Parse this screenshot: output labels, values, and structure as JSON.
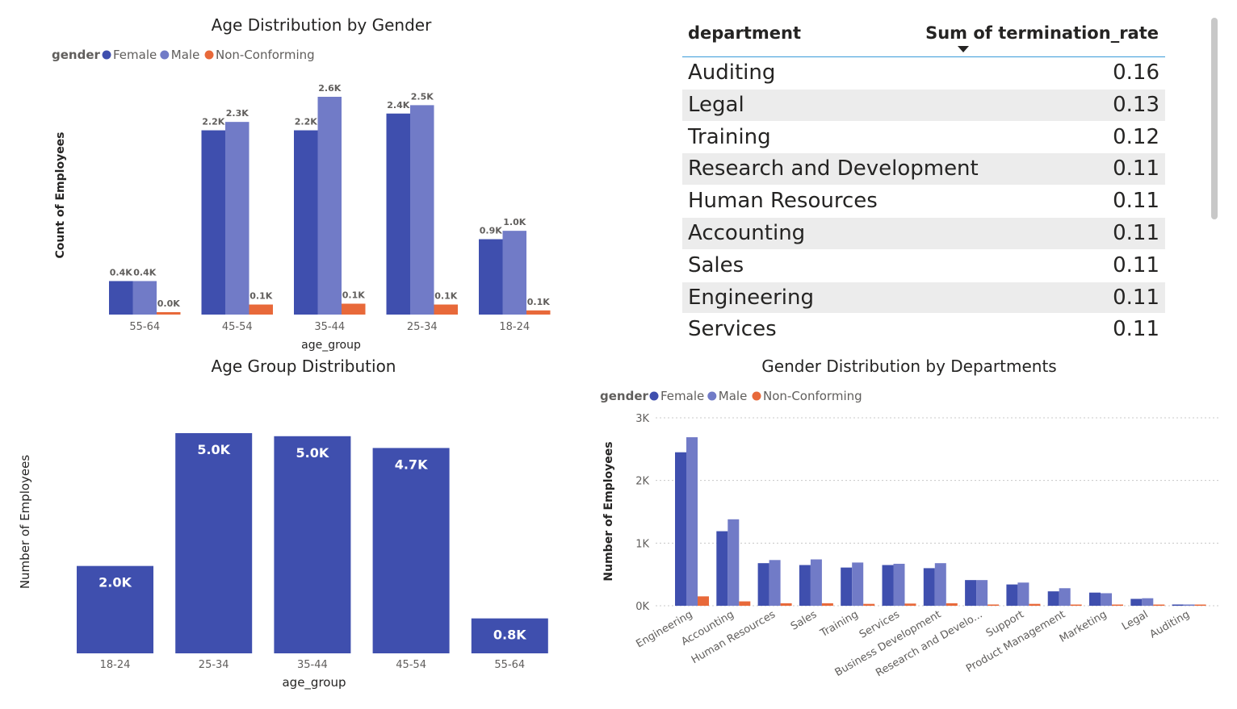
{
  "colors": {
    "female": "#3f4fae",
    "male": "#717bc7",
    "nonconforming": "#e8693a",
    "single": "#3f4fae",
    "grid": "#c8c8c8",
    "header_line": "#3a9bd9"
  },
  "chart1": {
    "title": "Age Distribution by Gender",
    "legend_title": "gender",
    "xlabel": "age_group",
    "ylabel": "Count of Employees"
  },
  "table": {
    "col1": "department",
    "col2": "Sum of termination_rate",
    "rows": [
      {
        "department": "Auditing",
        "rate": "0.16"
      },
      {
        "department": "Legal",
        "rate": "0.13"
      },
      {
        "department": "Training",
        "rate": "0.12"
      },
      {
        "department": "Research and Development",
        "rate": "0.11"
      },
      {
        "department": "Human Resources",
        "rate": "0.11"
      },
      {
        "department": "Accounting",
        "rate": "0.11"
      },
      {
        "department": "Sales",
        "rate": "0.11"
      },
      {
        "department": "Engineering",
        "rate": "0.11"
      },
      {
        "department": "Services",
        "rate": "0.11"
      }
    ]
  },
  "chart2": {
    "title": "Age Group Distribution",
    "xlabel": "age_group",
    "ylabel": "Number of Employees"
  },
  "chart3": {
    "title": "Gender Distribution by Departments",
    "legend_title": "gender",
    "ylabel": "Number of Employees"
  },
  "chart_data": [
    {
      "type": "bar",
      "title": "Age Distribution by Gender",
      "xlabel": "age_group",
      "ylabel": "Count of Employees",
      "legend_position": "top-left",
      "categories": [
        "55-64",
        "45-54",
        "35-44",
        "25-34",
        "18-24"
      ],
      "series": [
        {
          "name": "Female",
          "values": [
            0.4,
            2.2,
            2.2,
            2.4,
            0.9
          ],
          "labels": [
            "0.4K",
            "2.2K",
            "2.2K",
            "2.4K",
            "0.9K"
          ]
        },
        {
          "name": "Male",
          "values": [
            0.4,
            2.3,
            2.6,
            2.5,
            1.0
          ],
          "labels": [
            "0.4K",
            "2.3K",
            "2.6K",
            "2.5K",
            "1.0K"
          ]
        },
        {
          "name": "Non-Conforming",
          "values": [
            0.02,
            0.12,
            0.13,
            0.12,
            0.05
          ],
          "labels": [
            "0.0K",
            "0.1K",
            "0.1K",
            "0.1K",
            "0.1K"
          ]
        }
      ],
      "ylim": [
        0,
        2.8
      ],
      "unit": "K"
    },
    {
      "type": "bar",
      "title": "Age Group Distribution",
      "xlabel": "age_group",
      "ylabel": "Number of Employees",
      "categories": [
        "18-24",
        "25-34",
        "35-44",
        "45-54",
        "55-64"
      ],
      "values": [
        2.0,
        5.04,
        4.97,
        4.7,
        0.8
      ],
      "labels": [
        "2.0K",
        "5.0K",
        "5.0K",
        "4.7K",
        "0.8K"
      ],
      "ylim": [
        0,
        5.1
      ],
      "unit": "K"
    },
    {
      "type": "bar",
      "title": "Gender Distribution by Departments",
      "ylabel": "Number of Employees",
      "legend_position": "top-left",
      "categories": [
        "Engineering",
        "Accounting",
        "Human Resources",
        "Sales",
        "Training",
        "Services",
        "Business Development",
        "Research and Develo...",
        "Support",
        "Product Management",
        "Marketing",
        "Legal",
        "Auditing"
      ],
      "series": [
        {
          "name": "Female",
          "values": [
            2450,
            1190,
            680,
            650,
            610,
            650,
            600,
            410,
            340,
            230,
            210,
            110,
            20
          ]
        },
        {
          "name": "Male",
          "values": [
            2690,
            1380,
            730,
            740,
            690,
            670,
            680,
            410,
            370,
            280,
            200,
            120,
            20
          ]
        },
        {
          "name": "Non-Conforming",
          "values": [
            150,
            70,
            40,
            40,
            30,
            35,
            40,
            20,
            30,
            15,
            15,
            15,
            5
          ]
        }
      ],
      "yticks": [
        "0K",
        "1K",
        "2K",
        "3K"
      ],
      "ylim": [
        0,
        3000
      ],
      "grid": true
    }
  ]
}
